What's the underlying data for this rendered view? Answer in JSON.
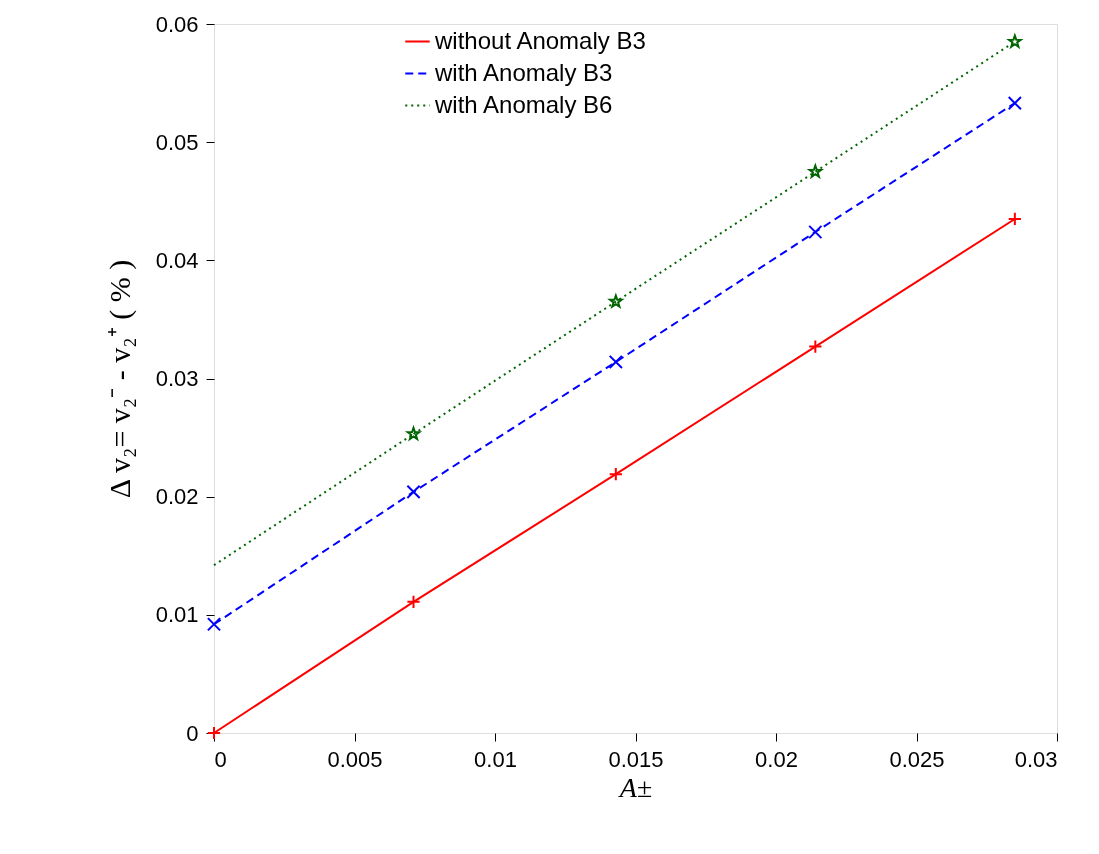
{
  "chart_data": {
    "type": "line",
    "xlabel": "A±",
    "ylabel": "Δ v₂= v₂⁻ - v₂⁺ ( % )",
    "x": [
      0,
      0.0071,
      0.0143,
      0.0214,
      0.0285
    ],
    "series": [
      {
        "name": "without Anomaly B3",
        "color": "#ff0000",
        "line_style": "solid",
        "marker": "cross",
        "values": [
          0,
          0.0111,
          0.0219,
          0.0327,
          0.0435
        ]
      },
      {
        "name": "with Anomaly  B3",
        "color": "#0000ff",
        "line_style": "dashed",
        "marker": "x",
        "values": [
          0.0092,
          0.0204,
          0.0314,
          0.0424,
          0.0533
        ]
      },
      {
        "name": "with Anomaly B6",
        "color": "#006400",
        "line_style": "dotted",
        "marker": "star",
        "x": [
          0.0071,
          0.0143,
          0.0214,
          0.0285
        ],
        "values": [
          0.0253,
          0.0365,
          0.0475,
          0.0585
        ]
      },
      {
        "type": "line",
        "color": "#006400",
        "line_style": "dotted",
        "marker": "none",
        "x": [
          0,
          0.0071
        ],
        "values": [
          0.0142,
          0.0253
        ]
      }
    ],
    "xlim": [
      0,
      0.03
    ],
    "xticks": [
      0,
      0.005,
      0.01,
      0.015,
      0.02,
      0.025,
      0.03
    ],
    "ylim": [
      0,
      0.06
    ],
    "yticks": [
      0,
      0.01,
      0.02,
      0.03,
      0.04,
      0.05,
      0.06
    ],
    "grid": false,
    "legend": "top"
  }
}
